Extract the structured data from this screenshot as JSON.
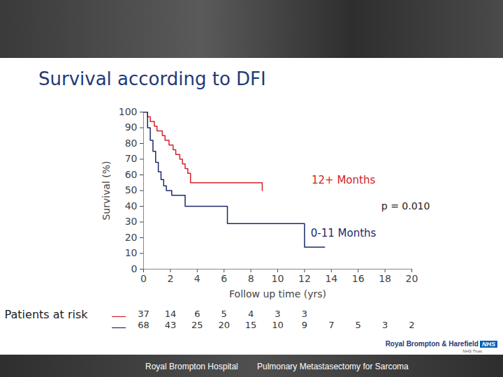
{
  "chart_data": {
    "type": "line",
    "title": "Survival according to DFI",
    "x_label": "Follow up time (yrs)",
    "y_label": "Survival (%)",
    "xlim": [
      0,
      20
    ],
    "ylim": [
      0,
      100
    ],
    "xticks": [
      0,
      2,
      4,
      6,
      8,
      10,
      12,
      14,
      16,
      18,
      20
    ],
    "yticks": [
      0,
      10,
      20,
      30,
      40,
      50,
      60,
      70,
      80,
      90,
      100
    ],
    "line_style": "step",
    "series": [
      {
        "name": "12+ Months",
        "color": "#d2232a",
        "x": [
          0,
          0.3,
          0.5,
          0.8,
          1.0,
          1.4,
          1.6,
          1.9,
          2.2,
          2.4,
          2.7,
          2.9,
          3.1,
          3.3,
          3.5,
          8.85,
          8.85
        ],
        "values": [
          100,
          97,
          94,
          91,
          88,
          85,
          82,
          79,
          76,
          73,
          70,
          67,
          64,
          61,
          55,
          55,
          50
        ],
        "at_risk": [
          37,
          14,
          6,
          5,
          4,
          3,
          3,
          null,
          null,
          null,
          null
        ]
      },
      {
        "name": "0-11 Months",
        "color": "#1b2a6b",
        "x": [
          0,
          0.3,
          0.5,
          0.7,
          0.9,
          1.1,
          1.3,
          1.5,
          1.7,
          2.1,
          3.1,
          6.25,
          12.0,
          13.5
        ],
        "values": [
          100,
          90,
          82,
          75,
          68,
          62,
          57,
          53,
          50,
          47,
          40,
          29,
          14,
          14
        ],
        "at_risk": [
          68,
          43,
          25,
          20,
          15,
          10,
          9,
          7,
          5,
          3,
          2
        ]
      }
    ],
    "at_risk_label": "Patients at risk",
    "at_risk_x": [
      0,
      2,
      4,
      6,
      8,
      10,
      12,
      14,
      16,
      18,
      20
    ],
    "annotations": [
      {
        "text": "p = 0.010",
        "x": 21.35,
        "y": 40
      }
    ],
    "footer": {
      "left": "Royal Brompton Hospital",
      "right": "Pulmonary Metastasectomy for Sarcoma",
      "logo": "Royal Brompton & Harefield",
      "logo_badge": "NHS",
      "logo_sub": "NHS Trust"
    }
  }
}
